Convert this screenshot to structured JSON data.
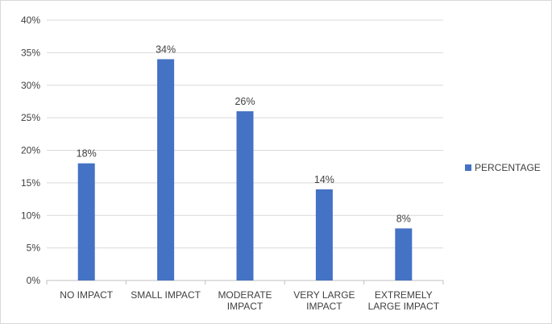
{
  "chart_data": {
    "type": "bar",
    "categories": [
      [
        "NO IMPACT"
      ],
      [
        "SMALL IMPACT"
      ],
      [
        "MODERATE",
        "IMPACT"
      ],
      [
        "VERY LARGE",
        "IMPACT"
      ],
      [
        "EXTREMELY",
        "LARGE IMPACT"
      ]
    ],
    "series": [
      {
        "name": "PERCENTAGE",
        "values": [
          18,
          34,
          26,
          14,
          8
        ],
        "data_labels": [
          "18%",
          "34%",
          "26%",
          "14%",
          "8%"
        ],
        "color": "#4472c4"
      }
    ],
    "y_ticks": [
      "0%",
      "5%",
      "10%",
      "15%",
      "20%",
      "25%",
      "30%",
      "35%",
      "40%"
    ],
    "ylim": [
      0,
      40
    ],
    "grid": true,
    "legend_position": "right"
  }
}
